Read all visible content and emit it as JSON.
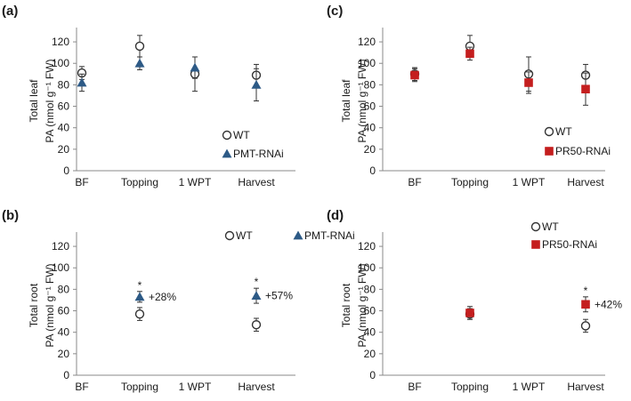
{
  "figure": {
    "colors": {
      "wt": "#333333",
      "pmt": "#2d5a86",
      "pr50": "#c41e1e",
      "axis": "#8a8a8a"
    }
  },
  "chart_data": [
    {
      "panel": "(a)",
      "type": "scatter",
      "ylabel_line1": "Total leaf",
      "ylabel_line2": "PA (nmol g⁻¹ FW)",
      "categories": [
        "BF",
        "Topping",
        "1 WPT",
        "Harvest"
      ],
      "yticks": [
        0,
        20,
        40,
        60,
        80,
        100,
        120
      ],
      "ylim": [
        0,
        130
      ],
      "legend_position": "lower-right",
      "series": [
        {
          "name": "WT",
          "marker": "circle",
          "values": [
            91,
            116,
            90,
            89
          ],
          "errors": [
            6,
            10,
            16,
            10
          ]
        },
        {
          "name": "PMT-RNAi",
          "marker": "triangle",
          "values": [
            82,
            100,
            96,
            80
          ],
          "errors": [
            8,
            6,
            10,
            15
          ]
        }
      ],
      "annotations": []
    },
    {
      "panel": "(c)",
      "type": "scatter",
      "ylabel_line1": "Total leaf",
      "ylabel_line2": "PA (nmol g⁻¹ FW)",
      "categories": [
        "BF",
        "Topping",
        "1 WPT",
        "Harvest"
      ],
      "yticks": [
        0,
        20,
        40,
        60,
        80,
        100,
        120
      ],
      "ylim": [
        0,
        130
      ],
      "legend_position": "lower-right",
      "series": [
        {
          "name": "WT",
          "marker": "circle",
          "values": [
            90,
            116,
            90,
            89
          ],
          "errors": [
            6,
            10,
            16,
            10
          ]
        },
        {
          "name": "PR50-RNAi",
          "marker": "square",
          "values": [
            89,
            109,
            82,
            76
          ],
          "errors": [
            6,
            6,
            10,
            15
          ]
        }
      ],
      "annotations": []
    },
    {
      "panel": "(b)",
      "type": "scatter",
      "ylabel_line1": "Total root",
      "ylabel_line2": "PA (nmol g⁻¹ FW)",
      "categories": [
        "BF",
        "Topping",
        "1 WPT",
        "Harvest"
      ],
      "yticks": [
        0,
        20,
        40,
        60,
        80,
        100,
        120
      ],
      "ylim": [
        0,
        130
      ],
      "legend_position": "top-right",
      "series": [
        {
          "name": "WT",
          "marker": "circle",
          "values": [
            null,
            57,
            null,
            47
          ],
          "errors": [
            null,
            6,
            null,
            6
          ]
        },
        {
          "name": "PMT-RNAi",
          "marker": "triangle",
          "values": [
            null,
            73,
            null,
            74
          ],
          "errors": [
            null,
            5,
            null,
            7
          ]
        }
      ],
      "annotations": [
        {
          "category": "Topping",
          "star": "*",
          "text": "+28%"
        },
        {
          "category": "Harvest",
          "star": "*",
          "text": "+57%"
        }
      ]
    },
    {
      "panel": "(d)",
      "type": "scatter",
      "ylabel_line1": "Total root",
      "ylabel_line2": "PA (nmol g⁻¹ FW)",
      "categories": [
        "BF",
        "Topping",
        "1 WPT",
        "Harvest"
      ],
      "yticks": [
        0,
        20,
        40,
        60,
        80,
        100,
        120
      ],
      "ylim": [
        0,
        130
      ],
      "legend_position": "top-left",
      "series": [
        {
          "name": "WT",
          "marker": "circle",
          "values": [
            null,
            57,
            null,
            46
          ],
          "errors": [
            null,
            5,
            null,
            6
          ]
        },
        {
          "name": "PR50-RNAi",
          "marker": "square",
          "values": [
            null,
            58,
            null,
            66
          ],
          "errors": [
            null,
            6,
            null,
            7
          ]
        }
      ],
      "annotations": [
        {
          "category": "Harvest",
          "star": "*",
          "text": "+42%"
        }
      ]
    }
  ]
}
